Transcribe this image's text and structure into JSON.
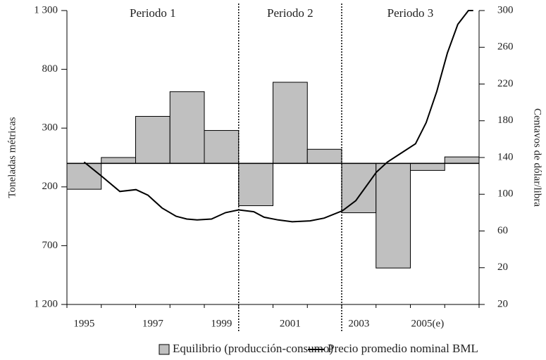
{
  "chart_data": {
    "type": "bar",
    "period_labels": [
      "Periodo 1",
      "Periodo 2",
      "Periodo 3"
    ],
    "period_breaks": [
      1999.5,
      2002.5
    ],
    "y_label": "Toneladas métricas",
    "y2_label": "Centavos de dólar/libra",
    "categories": [
      "1995",
      null,
      "1997",
      null,
      "1999",
      null,
      "2001",
      null,
      "2003",
      null,
      "2005(e)",
      null
    ],
    "xlim": [
      1994.5,
      2006.5
    ],
    "ylim": [
      -1200,
      1300
    ],
    "yticks": [
      {
        "value": 1300,
        "label": "1 300"
      },
      800,
      300,
      {
        "value": -200,
        "label": "200"
      },
      {
        "value": -700,
        "label": "700"
      },
      {
        "value": -1200,
        "label": "1 200"
      }
    ],
    "y2lim": [
      -20,
      300
    ],
    "y2ticks": [
      300,
      260,
      220,
      180,
      140,
      100,
      60,
      20,
      {
        "value": -20,
        "label": "20"
      }
    ],
    "series": [
      {
        "name": "Equilibrio (producción-consumo)",
        "color": "#c0c0c0",
        "values": [
          -220,
          50,
          400,
          610,
          280,
          -360,
          690,
          120,
          -420,
          -890,
          -60,
          55
        ]
      },
      {
        "name": "Precio promedio nominal BML",
        "color": "#000000",
        "type": "line",
        "axis": "y2",
        "x": [
          1995.0,
          1995.53,
          1996.04,
          1996.51,
          1996.86,
          1997.27,
          1997.68,
          1997.99,
          1998.29,
          1998.71,
          1999.12,
          1999.5,
          1999.94,
          2000.24,
          2000.65,
          2001.06,
          2001.58,
          2001.99,
          2002.52,
          2002.91,
          2003.22,
          2003.51,
          2003.83,
          2004.24,
          2004.65,
          2004.96,
          2005.27,
          2005.58,
          2005.88,
          2006.19,
          2006.33
        ],
        "values": [
          135,
          119,
          103,
          105,
          99,
          85,
          76,
          73,
          72,
          73,
          80,
          83,
          81,
          75,
          72,
          70,
          71,
          74,
          82,
          93,
          109,
          124,
          135,
          145,
          155,
          178,
          212,
          254,
          285,
          300,
          300
        ]
      }
    ]
  }
}
